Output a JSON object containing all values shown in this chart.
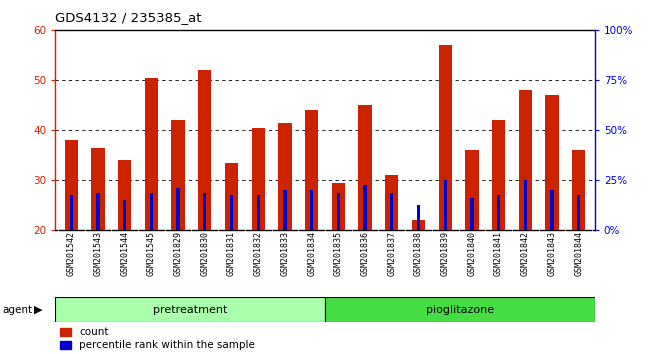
{
  "title": "GDS4132 / 235385_at",
  "samples": [
    "GSM201542",
    "GSM201543",
    "GSM201544",
    "GSM201545",
    "GSM201829",
    "GSM201830",
    "GSM201831",
    "GSM201832",
    "GSM201833",
    "GSM201834",
    "GSM201835",
    "GSM201836",
    "GSM201837",
    "GSM201838",
    "GSM201839",
    "GSM201840",
    "GSM201841",
    "GSM201842",
    "GSM201843",
    "GSM201844"
  ],
  "count_values": [
    38,
    36.5,
    34,
    50.5,
    42,
    52,
    33.5,
    40.5,
    41.5,
    44,
    29.5,
    45,
    31,
    22,
    57,
    36,
    42,
    48,
    47,
    36
  ],
  "percentile_values": [
    27,
    27.5,
    26,
    27.5,
    28.5,
    27.5,
    27,
    27,
    28,
    28,
    27.5,
    29,
    27.5,
    25,
    30,
    26.5,
    27,
    30,
    28,
    27
  ],
  "pretreatment_count": 10,
  "pioglitazone_count": 10,
  "pretreatment_label": "pretreatment",
  "pioglitazone_label": "pioglitazone",
  "agent_label": "agent",
  "bar_color_red": "#cc2200",
  "bar_color_blue": "#0000cc",
  "ylim_left": [
    20,
    60
  ],
  "ylim_right": [
    0,
    100
  ],
  "yticks_left": [
    20,
    30,
    40,
    50,
    60
  ],
  "yticks_right": [
    0,
    25,
    50,
    75,
    100
  ],
  "ytick_labels_right": [
    "0%",
    "25%",
    "50%",
    "75%",
    "100%"
  ],
  "grid_ticks": [
    30,
    40,
    50
  ],
  "legend_count": "count",
  "legend_percentile": "percentile rank within the sample",
  "bg_color": "#d3d3d3",
  "pretreatment_bg": "#aaffaa",
  "pioglitazone_bg": "#44dd44",
  "bar_width": 0.5
}
